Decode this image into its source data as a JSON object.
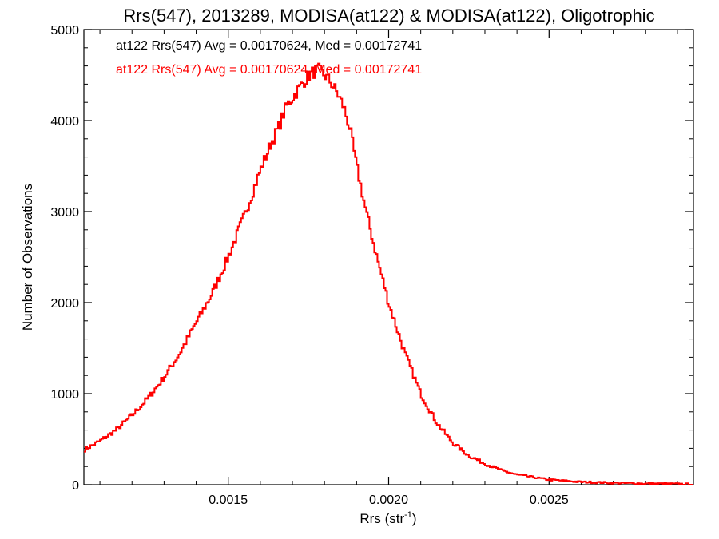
{
  "chart_data": {
    "type": "histogram",
    "title": "Rrs(547), 2013289, MODISA(at122) & MODISA(at122), Oligotrophic",
    "xlabel_main": "Rrs (str",
    "xlabel_sup": "-1",
    "xlabel_close": ")",
    "ylabel": "Number of Observations",
    "xlim": [
      0.00105,
      0.00295
    ],
    "ylim": [
      0,
      5000
    ],
    "x_ticks": [
      0.0015,
      0.002,
      0.0025
    ],
    "x_tick_labels": [
      "0.0015",
      "0.0020",
      "0.0025"
    ],
    "y_ticks": [
      0,
      1000,
      2000,
      3000,
      4000,
      5000
    ],
    "y_tick_labels": [
      "0",
      "1000",
      "2000",
      "3000",
      "4000",
      "5000"
    ],
    "annotations": [
      {
        "text": "at122 Rrs(547) Avg = 0.00170624, Med = 0.00172741",
        "color": "#000000"
      },
      {
        "text": "at122 Rrs(547) Avg = 0.00170624, Med = 0.00172741",
        "color": "#ff0000"
      }
    ],
    "series": [
      {
        "color": "#ff0000",
        "x": [
          0.00105,
          0.0011,
          0.00115,
          0.0012,
          0.00125,
          0.0013,
          0.00135,
          0.0014,
          0.00145,
          0.0015,
          0.00155,
          0.0016,
          0.00163,
          0.00166,
          0.00168,
          0.0017,
          0.00172,
          0.00174,
          0.00176,
          0.00178,
          0.0018,
          0.00182,
          0.00184,
          0.00186,
          0.00188,
          0.0019,
          0.00193,
          0.00196,
          0.002,
          0.00205,
          0.0021,
          0.00215,
          0.0022,
          0.00225,
          0.0023,
          0.00235,
          0.0024,
          0.0025,
          0.0026,
          0.0027,
          0.0028,
          0.0029,
          0.00295
        ],
        "y": [
          380,
          480,
          600,
          760,
          950,
          1180,
          1450,
          1780,
          2100,
          2500,
          2950,
          3450,
          3720,
          3950,
          4150,
          4250,
          4350,
          4450,
          4520,
          4560,
          4500,
          4420,
          4300,
          4150,
          3900,
          3500,
          3000,
          2550,
          2000,
          1450,
          1000,
          680,
          460,
          320,
          230,
          160,
          110,
          55,
          30,
          20,
          12,
          8,
          5
        ]
      }
    ]
  }
}
